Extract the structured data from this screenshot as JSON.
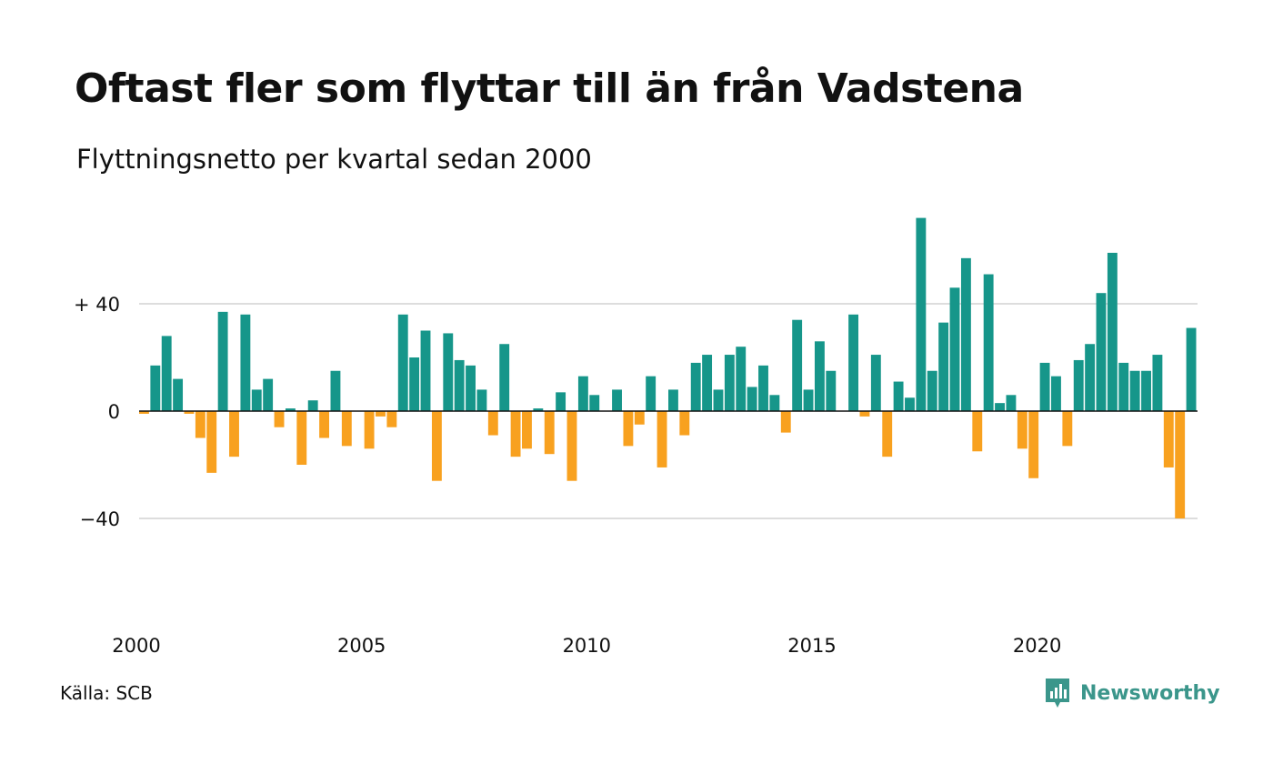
{
  "title": "Oftast fler som flyttar till än från Vadstena",
  "subtitle": "Flyttningsnetto per kvartal sedan 2000",
  "source": "Källa: SCB",
  "brand": {
    "name": "Newsworthy",
    "color": "#3b968b",
    "icon": "newsworthy-logo-icon"
  },
  "colors": {
    "positive": "#16968a",
    "negative": "#f8a11f",
    "grid": "#dddddd",
    "zero": "#111111"
  },
  "chart_data": {
    "type": "bar",
    "x_start": "2000 Q1",
    "x_ticks": [
      {
        "label": "2000",
        "index": 0
      },
      {
        "label": "2005",
        "index": 20
      },
      {
        "label": "2010",
        "index": 40
      },
      {
        "label": "2015",
        "index": 60
      },
      {
        "label": "2020",
        "index": 80
      }
    ],
    "y_ticks": [
      {
        "label": "+ 40",
        "value": 40
      },
      {
        "label": "0",
        "value": 0
      },
      {
        "label": "−40",
        "value": -40
      }
    ],
    "ylim": [
      -80,
      72
    ],
    "grid": true,
    "values": [
      -1,
      17,
      28,
      12,
      -1,
      -10,
      -23,
      37,
      -17,
      36,
      8,
      12,
      -6,
      1,
      -20,
      4,
      -10,
      15,
      -13,
      0,
      -14,
      -2,
      -6,
      36,
      20,
      30,
      -26,
      29,
      19,
      17,
      8,
      -9,
      25,
      -17,
      -14,
      1,
      -16,
      7,
      -26,
      13,
      6,
      0,
      8,
      -13,
      -5,
      13,
      -21,
      8,
      -9,
      18,
      21,
      8,
      21,
      24,
      9,
      17,
      6,
      -8,
      34,
      8,
      26,
      15,
      0,
      36,
      -2,
      21,
      -17,
      11,
      5,
      72,
      15,
      33,
      46,
      57,
      -15,
      51,
      3,
      6,
      -14,
      -25,
      18,
      13,
      -13,
      19,
      25,
      44,
      59,
      18,
      15,
      15,
      21,
      -21,
      -40,
      31
    ]
  }
}
